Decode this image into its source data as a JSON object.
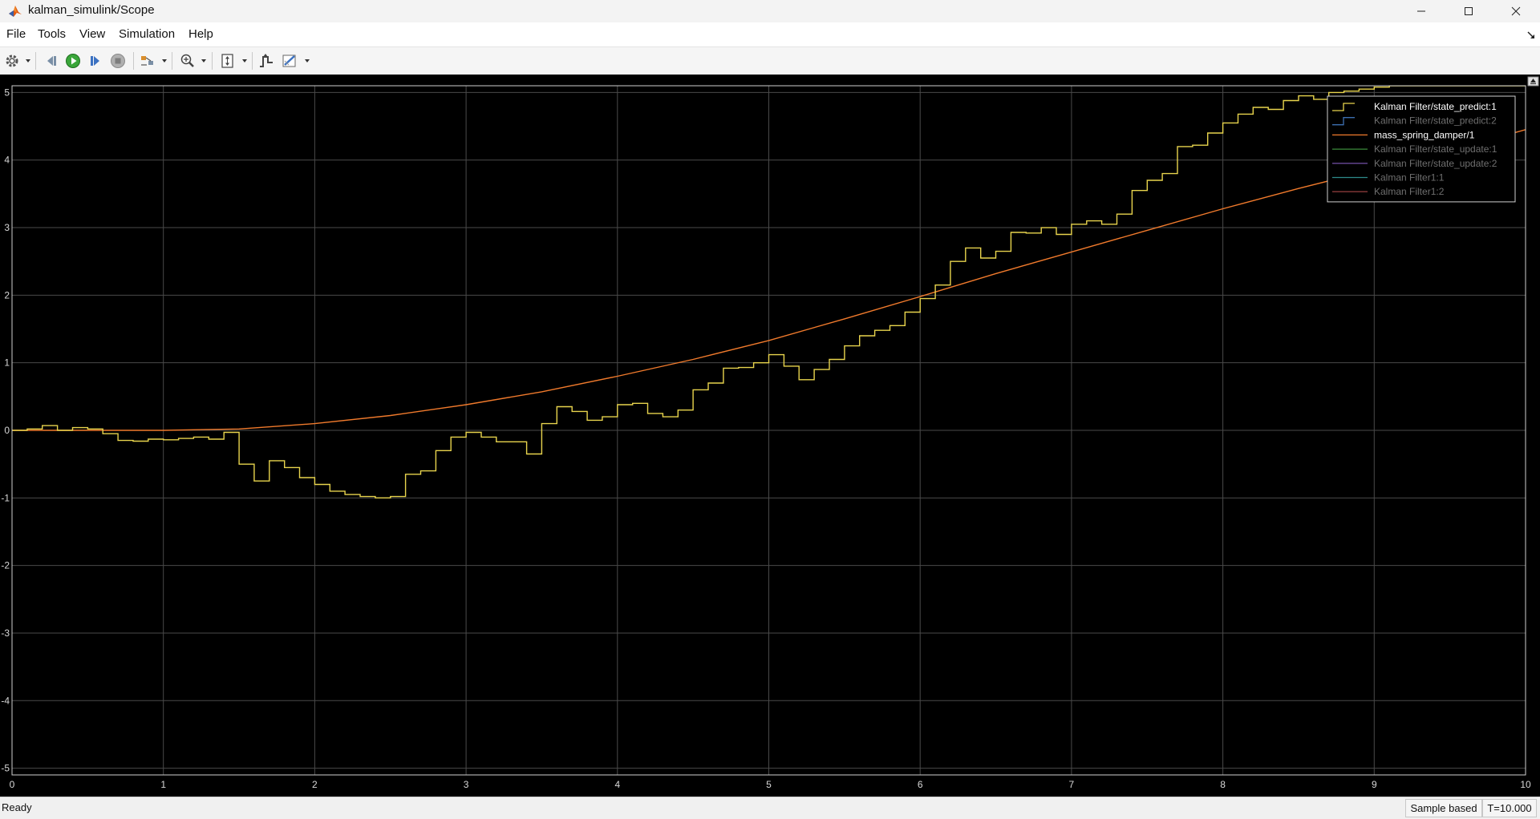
{
  "window": {
    "title": "kalman_simulink/Scope"
  },
  "menu": [
    "File",
    "Tools",
    "View",
    "Simulation",
    "Help"
  ],
  "toolbar": {
    "icons": [
      "settings-icon",
      "step-back-icon",
      "run-icon",
      "step-forward-icon",
      "stop-icon",
      "highlight-simulink-block-icon",
      "zoom-in-icon",
      "scale-axes-icon",
      "triggers-icon",
      "style-icon"
    ]
  },
  "plot": {
    "background": "#000000",
    "axes_color": "#d8d8d8",
    "grid_color": "#4a4a4a"
  },
  "status": {
    "left": "Ready",
    "mode": "Sample based",
    "time": "T=10.000"
  },
  "chart_data": {
    "type": "line",
    "xlim": [
      0,
      10
    ],
    "ylim": [
      -5.1,
      5.1
    ],
    "xticks": [
      "0",
      "1",
      "2",
      "3",
      "4",
      "5",
      "6",
      "7",
      "8",
      "9",
      "10"
    ],
    "yticks": [
      "5",
      "4",
      "3",
      "2",
      "1",
      "0",
      "-1",
      "-2",
      "-3",
      "-4",
      "-5"
    ],
    "grid": true,
    "legend_position": "top-right",
    "legend": [
      {
        "name": "Kalman Filter/state_predict:1",
        "color": "#e8d44d",
        "active": true
      },
      {
        "name": "Kalman Filter/state_predict:2",
        "color": "#3d6fb0",
        "active": false
      },
      {
        "name": "mass_spring_damper/1",
        "color": "#f07a2c",
        "active": true
      },
      {
        "name": "Kalman Filter/state_update:1",
        "color": "#3b8a3b",
        "active": false
      },
      {
        "name": "Kalman Filter/state_update:2",
        "color": "#6a4a9a",
        "active": false
      },
      {
        "name": "Kalman Filter1:1",
        "color": "#2d8a8a",
        "active": false
      },
      {
        "name": "Kalman Filter1:2",
        "color": "#8a3a3a",
        "active": false
      }
    ],
    "series": [
      {
        "name": "Kalman Filter/state_predict:1",
        "kind": "stairs",
        "color": "#e8d44d",
        "x": [
          0,
          0.1,
          0.2,
          0.3,
          0.4,
          0.5,
          0.6,
          0.7,
          0.8,
          0.9,
          1.0,
          1.1,
          1.2,
          1.3,
          1.4,
          1.5,
          1.6,
          1.7,
          1.8,
          1.9,
          2.0,
          2.1,
          2.2,
          2.3,
          2.4,
          2.5,
          2.6,
          2.7,
          2.8,
          2.9,
          3.0,
          3.1,
          3.2,
          3.3,
          3.4,
          3.5,
          3.6,
          3.7,
          3.8,
          3.9,
          4.0,
          4.1,
          4.2,
          4.3,
          4.4,
          4.5,
          4.6,
          4.7,
          4.8,
          4.9,
          5.0,
          5.1,
          5.2,
          5.3,
          5.4,
          5.5,
          5.6,
          5.7,
          5.8,
          5.9,
          6.0,
          6.1,
          6.2,
          6.3,
          6.4,
          6.5,
          6.6,
          6.7,
          6.8,
          6.9,
          7.0,
          7.1,
          7.2,
          7.3,
          7.4,
          7.5,
          7.6,
          7.7,
          7.8,
          7.9,
          8.0,
          8.1,
          8.2,
          8.3,
          8.4,
          8.5,
          8.6,
          8.7,
          8.8,
          8.9,
          9.0,
          9.1,
          9.2,
          9.3,
          9.4,
          9.5,
          9.6,
          9.7,
          9.8,
          9.9,
          10.0
        ],
        "y": [
          0,
          0.02,
          0.07,
          0.0,
          0.04,
          0.02,
          -0.05,
          -0.15,
          -0.16,
          -0.13,
          -0.14,
          -0.12,
          -0.1,
          -0.13,
          -0.03,
          -0.5,
          -0.75,
          -0.45,
          -0.55,
          -0.7,
          -0.8,
          -0.9,
          -0.95,
          -0.98,
          -1.0,
          -0.98,
          -0.65,
          -0.6,
          -0.3,
          -0.1,
          -0.03,
          -0.1,
          -0.17,
          -0.17,
          -0.35,
          0.1,
          0.35,
          0.28,
          0.15,
          0.2,
          0.38,
          0.4,
          0.25,
          0.2,
          0.3,
          0.6,
          0.7,
          0.92,
          0.93,
          1.0,
          1.12,
          0.95,
          0.75,
          0.9,
          1.05,
          1.25,
          1.4,
          1.48,
          1.55,
          1.75,
          1.95,
          2.15,
          2.5,
          2.7,
          2.55,
          2.65,
          2.93,
          2.92,
          3.0,
          2.9,
          3.05,
          3.1,
          3.05,
          3.2,
          3.55,
          3.7,
          3.8,
          4.2,
          4.22,
          4.4,
          4.55,
          4.68,
          4.78,
          4.75,
          4.88,
          4.95,
          4.9,
          5.0,
          5.02,
          5.05,
          5.08,
          5.1,
          5.1,
          5.1,
          5.1,
          5.1,
          5.1,
          5.1,
          5.1,
          5.1,
          5.1
        ]
      },
      {
        "name": "mass_spring_damper/1",
        "kind": "line",
        "color": "#f07a2c",
        "x": [
          0,
          0.5,
          1.0,
          1.5,
          2.0,
          2.5,
          3.0,
          3.5,
          4.0,
          4.5,
          5.0,
          5.5,
          6.0,
          6.5,
          7.0,
          7.5,
          8.0,
          8.5,
          9.0,
          9.5,
          10.0
        ],
        "y": [
          0,
          0.0,
          0.0,
          0.02,
          0.1,
          0.22,
          0.38,
          0.57,
          0.8,
          1.05,
          1.33,
          1.65,
          1.98,
          2.32,
          2.64,
          2.96,
          3.28,
          3.58,
          3.86,
          4.14,
          4.45
        ]
      }
    ]
  }
}
